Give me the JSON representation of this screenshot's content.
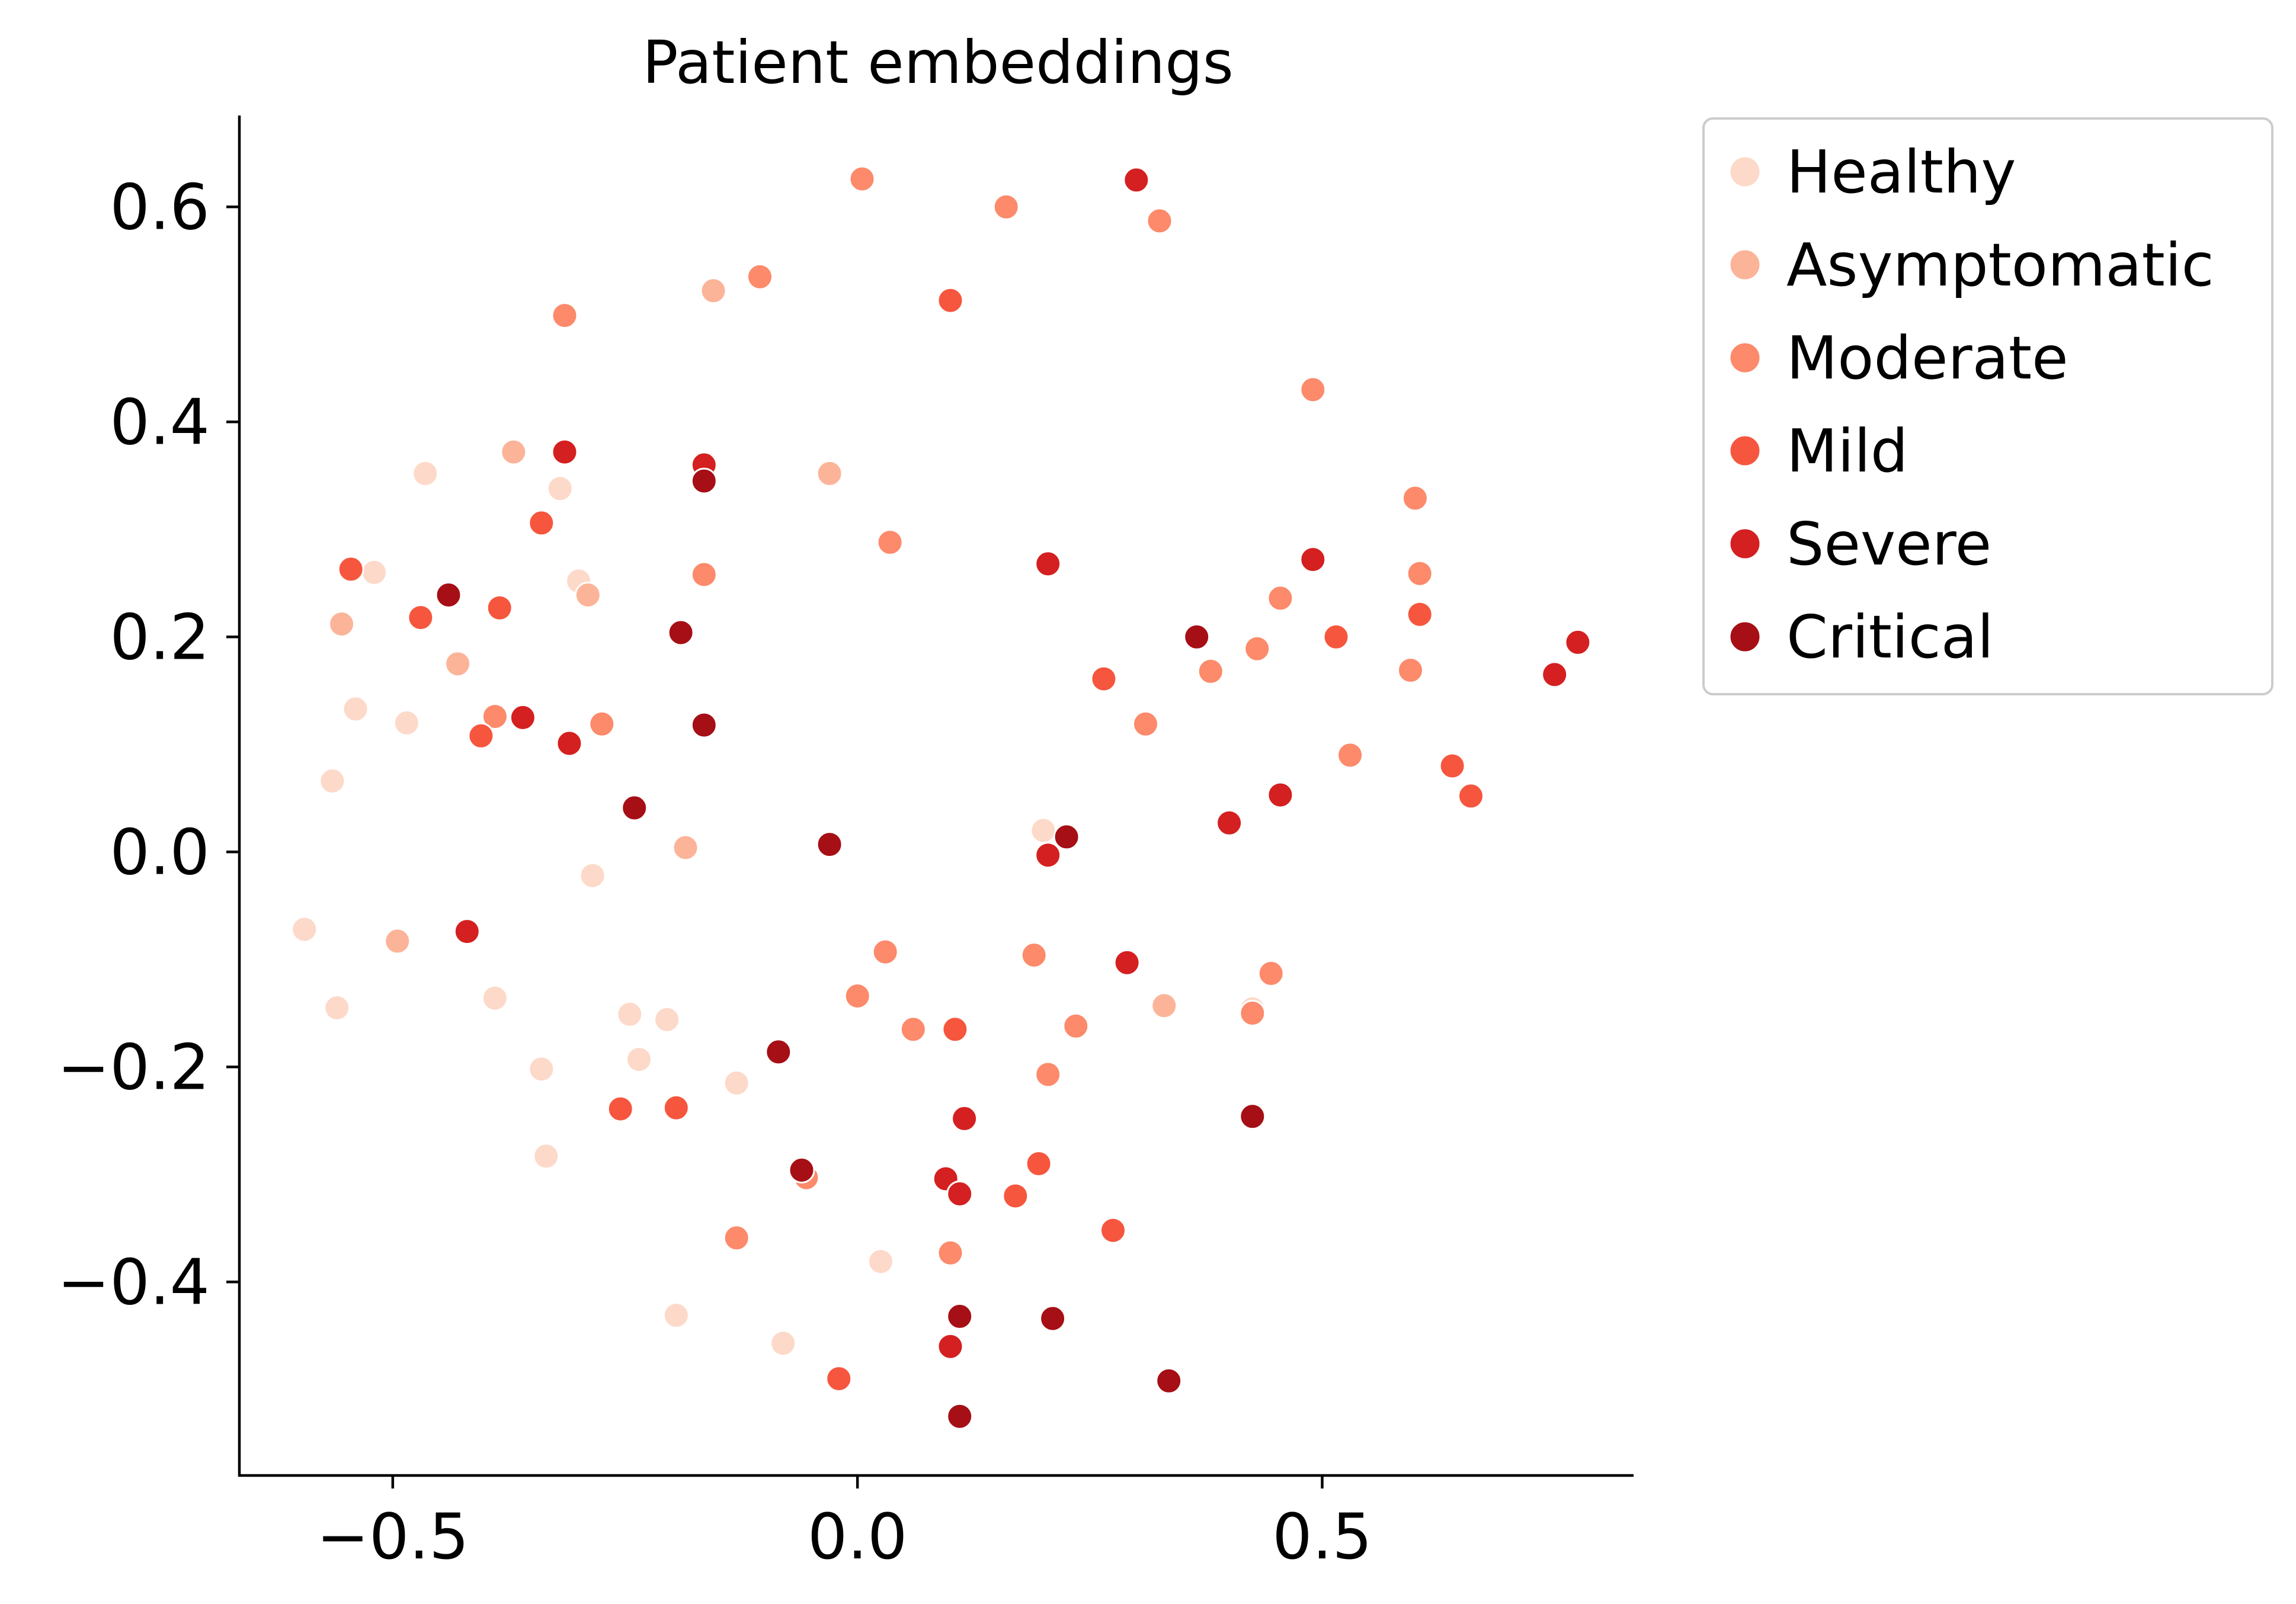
{
  "chart_data": {
    "type": "scatter",
    "title": "Patient embeddings",
    "xlabel": "",
    "ylabel": "",
    "xlim": [
      -0.665,
      0.835
    ],
    "ylim": [
      -0.58,
      0.685
    ],
    "xticks": [
      -0.5,
      0.0,
      0.5
    ],
    "xtick_labels": [
      "−0.5",
      "0.0",
      "0.5"
    ],
    "yticks": [
      -0.4,
      -0.2,
      0.0,
      0.2,
      0.4,
      0.6
    ],
    "ytick_labels": [
      "−0.4",
      "−0.2",
      "0.0",
      "0.2",
      "0.4",
      "0.6"
    ],
    "grid": false,
    "legend_position": "outside upper right",
    "series": [
      {
        "name": "Healthy",
        "color": "#fdd9c9",
        "points": [
          [
            -0.465,
            0.352
          ],
          [
            -0.32,
            0.338
          ],
          [
            -0.3,
            0.252
          ],
          [
            -0.52,
            0.26
          ],
          [
            -0.54,
            0.133
          ],
          [
            -0.485,
            0.12
          ],
          [
            -0.565,
            0.066
          ],
          [
            -0.285,
            -0.022
          ],
          [
            -0.595,
            -0.072
          ],
          [
            -0.56,
            -0.145
          ],
          [
            -0.39,
            -0.136
          ],
          [
            -0.245,
            -0.151
          ],
          [
            -0.205,
            -0.156
          ],
          [
            -0.235,
            -0.193
          ],
          [
            -0.34,
            -0.202
          ],
          [
            -0.13,
            -0.215
          ],
          [
            -0.335,
            -0.283
          ],
          [
            -0.195,
            -0.431
          ],
          [
            -0.08,
            -0.457
          ],
          [
            0.025,
            -0.381
          ],
          [
            0.2,
            0.02
          ],
          [
            0.425,
            -0.146
          ]
        ]
      },
      {
        "name": "Asymptomatic",
        "color": "#fcb499",
        "points": [
          [
            -0.37,
            0.372
          ],
          [
            -0.29,
            0.239
          ],
          [
            -0.43,
            0.175
          ],
          [
            -0.555,
            0.212
          ],
          [
            -0.155,
            0.522
          ],
          [
            -0.03,
            0.352
          ],
          [
            -0.185,
            0.004
          ],
          [
            -0.495,
            -0.083
          ],
          [
            0.33,
            -0.143
          ]
        ]
      },
      {
        "name": "Moderate",
        "color": "#fc8a6b",
        "points": [
          [
            0.005,
            0.626
          ],
          [
            0.16,
            0.6
          ],
          [
            0.325,
            0.587
          ],
          [
            -0.105,
            0.535
          ],
          [
            -0.315,
            0.499
          ],
          [
            0.49,
            0.43
          ],
          [
            0.6,
            0.329
          ],
          [
            0.035,
            0.288
          ],
          [
            -0.165,
            0.258
          ],
          [
            0.605,
            0.259
          ],
          [
            0.455,
            0.236
          ],
          [
            0.43,
            0.189
          ],
          [
            0.38,
            0.168
          ],
          [
            0.595,
            0.169
          ],
          [
            0.31,
            0.119
          ],
          [
            0.53,
            0.09
          ],
          [
            -0.39,
            0.126
          ],
          [
            -0.275,
            0.119
          ],
          [
            0.03,
            -0.093
          ],
          [
            0.0,
            -0.134
          ],
          [
            0.06,
            -0.165
          ],
          [
            0.235,
            -0.162
          ],
          [
            0.19,
            -0.096
          ],
          [
            0.445,
            -0.113
          ],
          [
            0.425,
            -0.15
          ],
          [
            0.205,
            -0.207
          ],
          [
            -0.055,
            -0.303
          ],
          [
            0.1,
            -0.373
          ],
          [
            -0.13,
            -0.359
          ]
        ]
      },
      {
        "name": "Mild",
        "color": "#f6563e",
        "points": [
          [
            -0.545,
            0.263
          ],
          [
            -0.47,
            0.218
          ],
          [
            -0.385,
            0.227
          ],
          [
            -0.34,
            0.306
          ],
          [
            -0.405,
            0.108
          ],
          [
            0.1,
            0.513
          ],
          [
            0.265,
            0.161
          ],
          [
            0.605,
            0.221
          ],
          [
            0.515,
            0.2
          ],
          [
            0.64,
            0.08
          ],
          [
            0.66,
            0.052
          ],
          [
            -0.255,
            -0.239
          ],
          [
            -0.195,
            -0.238
          ],
          [
            0.105,
            -0.165
          ],
          [
            0.195,
            -0.29
          ],
          [
            0.17,
            -0.32
          ],
          [
            -0.02,
            -0.49
          ],
          [
            0.275,
            -0.352
          ]
        ]
      },
      {
        "name": "Severe",
        "color": "#d42020",
        "points": [
          [
            0.3,
            0.625
          ],
          [
            -0.315,
            0.372
          ],
          [
            -0.165,
            0.36
          ],
          [
            -0.31,
            0.101
          ],
          [
            -0.36,
            0.125
          ],
          [
            0.205,
            0.268
          ],
          [
            0.49,
            0.272
          ],
          [
            0.75,
            0.165
          ],
          [
            0.775,
            0.195
          ],
          [
            0.4,
            0.027
          ],
          [
            0.455,
            0.053
          ],
          [
            0.205,
            -0.003
          ],
          [
            -0.42,
            -0.074
          ],
          [
            0.29,
            -0.103
          ],
          [
            0.095,
            -0.304
          ],
          [
            0.11,
            -0.318
          ],
          [
            0.1,
            -0.46
          ],
          [
            0.115,
            -0.248
          ]
        ]
      },
      {
        "name": "Critical",
        "color": "#a50f15",
        "points": [
          [
            -0.44,
            0.239
          ],
          [
            -0.165,
            0.345
          ],
          [
            -0.19,
            0.204
          ],
          [
            -0.165,
            0.118
          ],
          [
            -0.24,
            0.041
          ],
          [
            -0.03,
            0.007
          ],
          [
            0.225,
            0.014
          ],
          [
            0.365,
            0.2
          ],
          [
            -0.085,
            -0.186
          ],
          [
            -0.06,
            -0.296
          ],
          [
            0.425,
            -0.246
          ],
          [
            0.11,
            -0.432
          ],
          [
            0.21,
            -0.434
          ],
          [
            0.335,
            -0.492
          ],
          [
            0.11,
            -0.525
          ]
        ]
      }
    ]
  }
}
